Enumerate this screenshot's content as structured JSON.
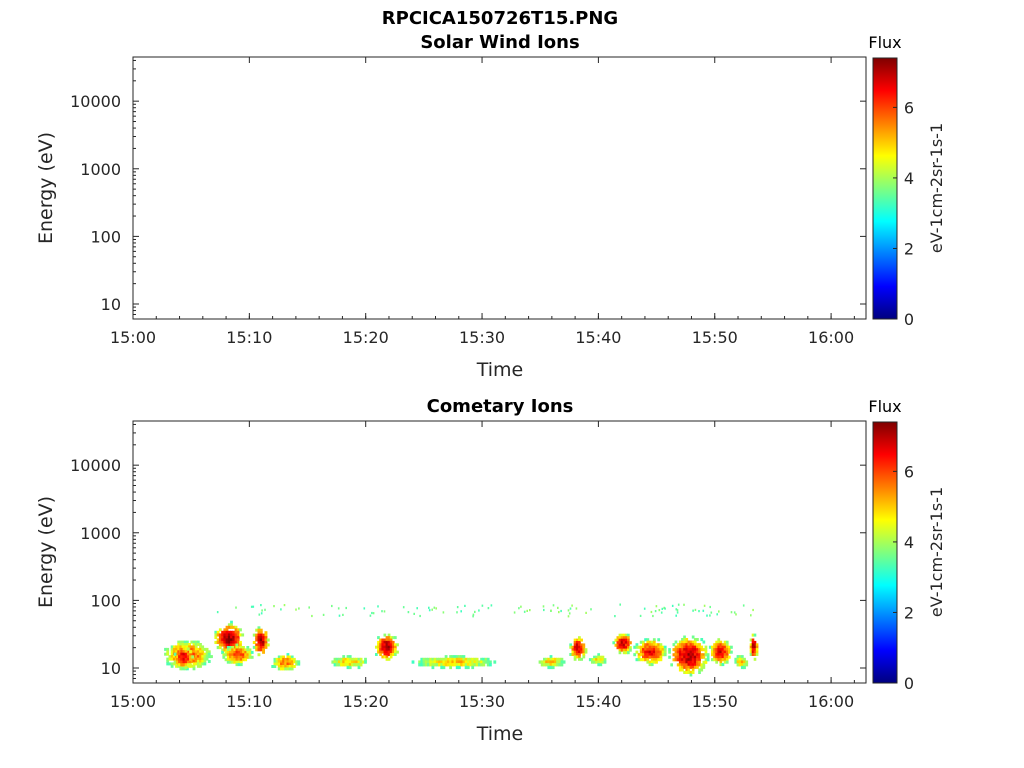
{
  "figure": {
    "filename_title": "RPCICA150726T15.PNG"
  },
  "chart_data": [
    {
      "type": "heatmap",
      "title": "Solar Wind Ions",
      "xlabel": "Time",
      "ylabel": "Energy (eV)",
      "x_ticks": [
        "15:00",
        "15:10",
        "15:20",
        "15:30",
        "15:40",
        "15:50",
        "16:00"
      ],
      "x_range": [
        "15:00",
        "16:03"
      ],
      "y_scale": "log",
      "y_ticks": [
        "10",
        "100",
        "1000",
        "10000"
      ],
      "y_range": [
        6,
        45000
      ],
      "colorbar": {
        "title": "Flux",
        "label": "eV-1cm-2sr-1s-1",
        "ticks": [
          "0",
          "2",
          "4",
          "6"
        ],
        "range": [
          0,
          7.4
        ],
        "colormap": "jet"
      },
      "blobs": []
    },
    {
      "type": "heatmap",
      "title": "Cometary Ions",
      "xlabel": "Time",
      "ylabel": "Energy (eV)",
      "x_ticks": [
        "15:00",
        "15:10",
        "15:20",
        "15:30",
        "15:40",
        "15:50",
        "16:00"
      ],
      "x_range": [
        "15:00",
        "16:03"
      ],
      "y_scale": "log",
      "y_ticks": [
        "10",
        "100",
        "1000",
        "10000"
      ],
      "y_range": [
        6,
        45000
      ],
      "colorbar": {
        "title": "Flux",
        "label": "eV-1cm-2sr-1s-1",
        "ticks": [
          "0",
          "2",
          "4",
          "6"
        ],
        "range": [
          0,
          7.4
        ],
        "colormap": "jet"
      },
      "blobs": [
        {
          "t0": 2.3,
          "t1": 7.0,
          "e0": 8,
          "e1": 30,
          "flux": 6.0
        },
        {
          "t0": 3.5,
          "t1": 5.2,
          "e0": 9,
          "e1": 22,
          "flux": 6.8
        },
        {
          "t0": 7.0,
          "t1": 9.5,
          "e0": 15,
          "e1": 50,
          "flux": 7.2
        },
        {
          "t0": 7.5,
          "t1": 10.5,
          "e0": 10,
          "e1": 25,
          "flux": 6.0
        },
        {
          "t0": 10.3,
          "t1": 11.7,
          "e0": 14,
          "e1": 45,
          "flux": 7.0
        },
        {
          "t0": 11.7,
          "t1": 14.5,
          "e0": 8,
          "e1": 18,
          "flux": 5.6
        },
        {
          "t0": 16.3,
          "t1": 20.8,
          "e0": 9,
          "e1": 17,
          "flux": 5.0
        },
        {
          "t0": 20.8,
          "t1": 22.8,
          "e0": 12,
          "e1": 35,
          "flux": 7.0
        },
        {
          "t0": 22.8,
          "t1": 32.5,
          "e0": 9,
          "e1": 17,
          "flux": 5.0
        },
        {
          "t0": 34.3,
          "t1": 37.5,
          "e0": 9,
          "e1": 17,
          "flux": 5.0
        },
        {
          "t0": 37.5,
          "t1": 39.0,
          "e0": 12,
          "e1": 32,
          "flux": 6.8
        },
        {
          "t0": 39.0,
          "t1": 41.0,
          "e0": 10,
          "e1": 18,
          "flux": 4.8
        },
        {
          "t0": 41.2,
          "t1": 43.0,
          "e0": 15,
          "e1": 35,
          "flux": 6.8
        },
        {
          "t0": 43.0,
          "t1": 46.0,
          "e0": 10,
          "e1": 30,
          "flux": 6.5
        },
        {
          "t0": 46.0,
          "t1": 49.5,
          "e0": 7,
          "e1": 33,
          "flux": 7.0
        },
        {
          "t0": 49.5,
          "t1": 51.5,
          "e0": 10,
          "e1": 30,
          "flux": 6.6
        },
        {
          "t0": 51.5,
          "t1": 53.0,
          "e0": 9,
          "e1": 17,
          "flux": 5.2
        },
        {
          "t0": 53.0,
          "t1": 53.7,
          "e0": 12,
          "e1": 35,
          "flux": 7.0
        }
      ],
      "sparse_points": {
        "t0": 6.5,
        "t1": 53.7,
        "e0": 60,
        "e1": 90,
        "flux": 3.6
      }
    }
  ]
}
